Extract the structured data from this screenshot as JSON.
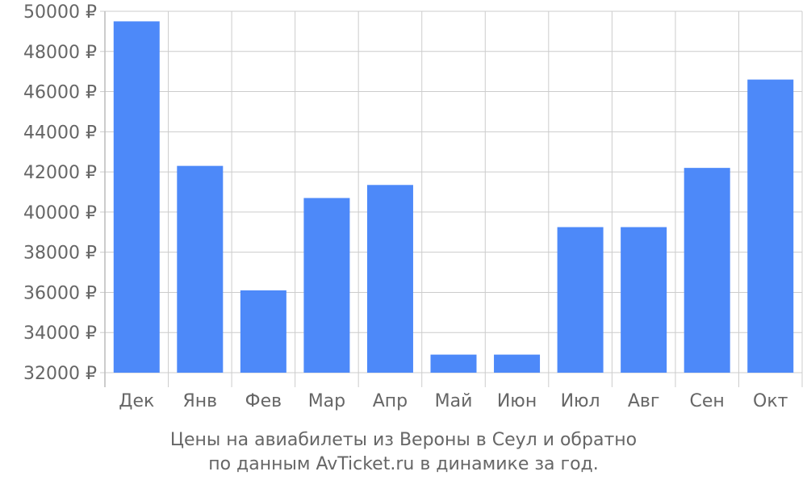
{
  "caption": {
    "line1": "Цены на авиабилеты из Вероны в Сеул и обратно",
    "line2": "по данным AvTicket.ru в динамике за год."
  },
  "chart_data": {
    "type": "bar",
    "categories": [
      "Дек",
      "Янв",
      "Фев",
      "Мар",
      "Апр",
      "Май",
      "Июн",
      "Июл",
      "Авг",
      "Сен",
      "Окт"
    ],
    "values": [
      49500,
      42300,
      36100,
      40700,
      41350,
      32900,
      32900,
      39250,
      39250,
      42200,
      46600
    ],
    "ylim": [
      32000,
      50000
    ],
    "yticks": [
      "32000 ₽",
      "34000 ₽",
      "36000 ₽",
      "38000 ₽",
      "40000 ₽",
      "42000 ₽",
      "44000 ₽",
      "46000 ₽",
      "48000 ₽",
      "50000 ₽"
    ],
    "ytick_values": [
      32000,
      34000,
      36000,
      38000,
      40000,
      42000,
      44000,
      46000,
      48000,
      50000
    ],
    "grid": true,
    "bar_color": "#4d89f9",
    "grid_color": "#cccccc",
    "text_color": "#666666"
  }
}
